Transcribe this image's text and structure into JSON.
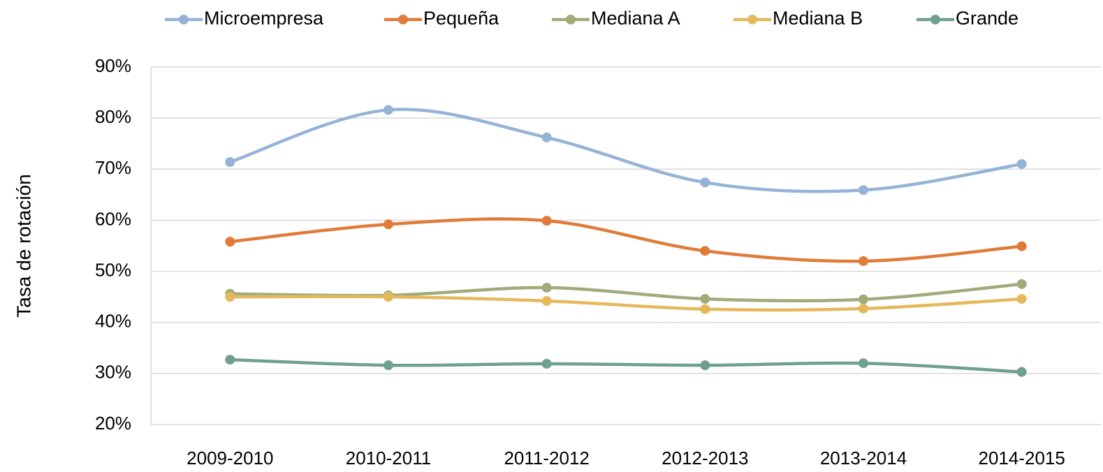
{
  "chart_data": {
    "type": "line",
    "ylabel": "Tasa de rotación",
    "categories": [
      "2009-2010",
      "2010-2011",
      "2011-2012",
      "2012-2013",
      "2013-2014",
      "2014-2015"
    ],
    "series": [
      {
        "name": "Microempresa",
        "color": "#95b3d7",
        "values": [
          71.4,
          81.6,
          76.2,
          67.4,
          65.9,
          71.0
        ]
      },
      {
        "name": "Pequeña",
        "color": "#e07b39",
        "values": [
          55.8,
          59.2,
          59.9,
          54.0,
          52.0,
          54.9
        ]
      },
      {
        "name": "Mediana A",
        "color": "#9fac7a",
        "values": [
          45.6,
          45.3,
          46.8,
          44.6,
          44.5,
          47.5
        ]
      },
      {
        "name": "Mediana B",
        "color": "#e6b85c",
        "values": [
          45.0,
          45.0,
          44.2,
          42.6,
          42.7,
          44.6
        ]
      },
      {
        "name": "Grande",
        "color": "#6fa08f",
        "values": [
          32.7,
          31.6,
          31.9,
          31.6,
          32.0,
          30.3
        ]
      }
    ],
    "ylim": [
      20,
      90
    ],
    "yticks": [
      {
        "value": 20,
        "label": "20%"
      },
      {
        "value": 30,
        "label": "30%"
      },
      {
        "value": 40,
        "label": "40%"
      },
      {
        "value": 50,
        "label": "50%"
      },
      {
        "value": 60,
        "label": "60%"
      },
      {
        "value": 70,
        "label": "70%"
      },
      {
        "value": 80,
        "label": "80%"
      },
      {
        "value": 90,
        "label": "90%"
      }
    ],
    "grid": true,
    "smooth": true,
    "legend": "top"
  }
}
